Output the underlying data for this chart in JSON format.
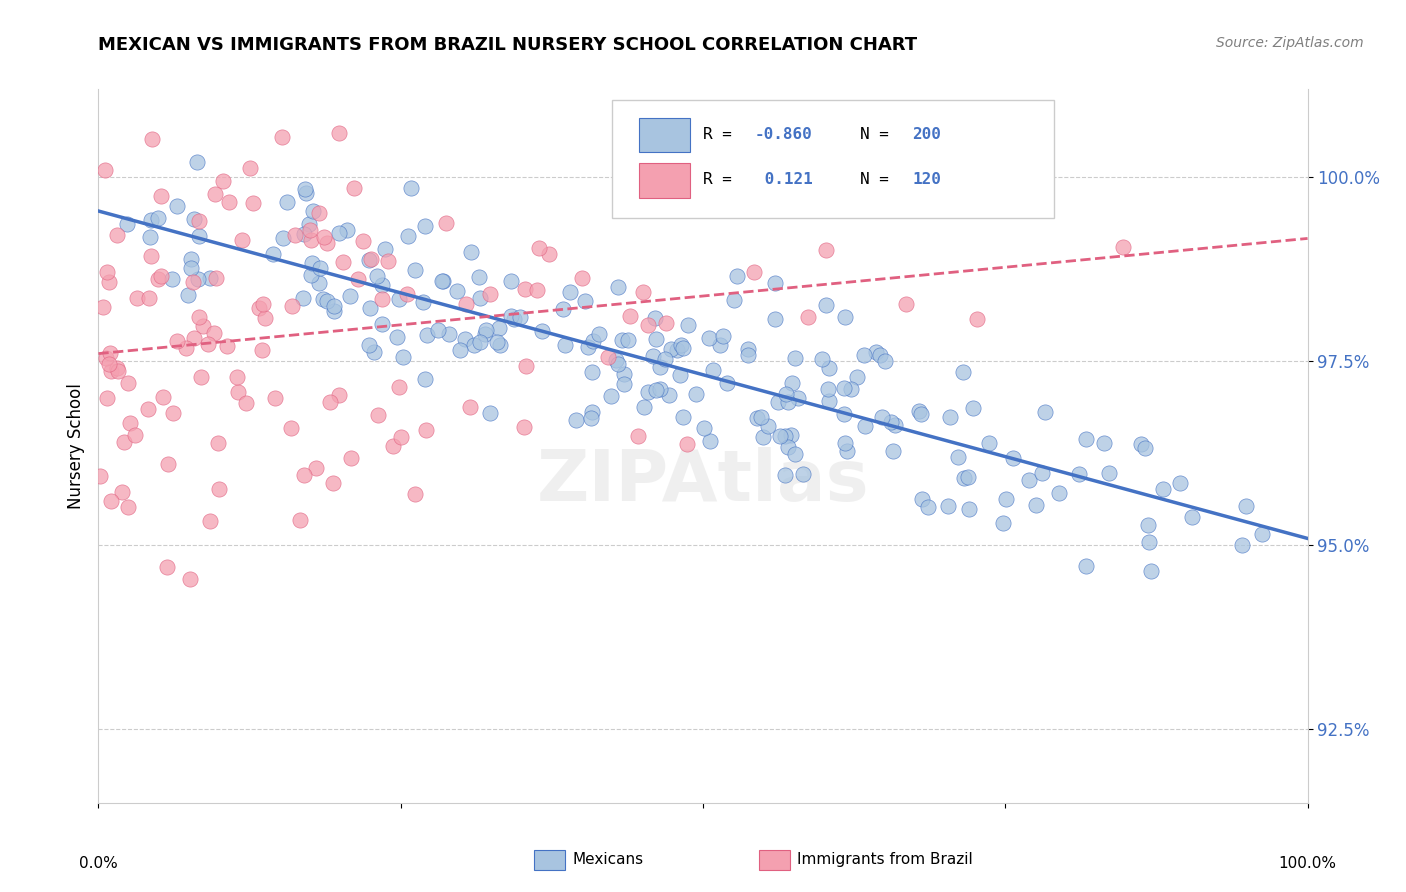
{
  "title": "MEXICAN VS IMMIGRANTS FROM BRAZIL NURSERY SCHOOL CORRELATION CHART",
  "source_text": "Source: ZipAtlas.com",
  "ylabel": "Nursery School",
  "legend_r_blue": "-0.860",
  "legend_n_blue": "200",
  "legend_r_pink": "0.121",
  "legend_n_pink": "120",
  "blue_color": "#a8c4e0",
  "pink_color": "#f4a0b0",
  "blue_line_color": "#4472c4",
  "pink_line_color": "#e06080",
  "yticks": [
    92.5,
    95.0,
    97.5,
    100.0
  ],
  "ytick_labels": [
    "92.5%",
    "95.0%",
    "97.5%",
    "100.0%"
  ],
  "xlim": [
    0.0,
    1.0
  ],
  "ylim": [
    91.5,
    101.2
  ],
  "blue_scatter_seed": 42,
  "pink_scatter_seed": 7,
  "n_blue": 200,
  "n_pink": 120
}
